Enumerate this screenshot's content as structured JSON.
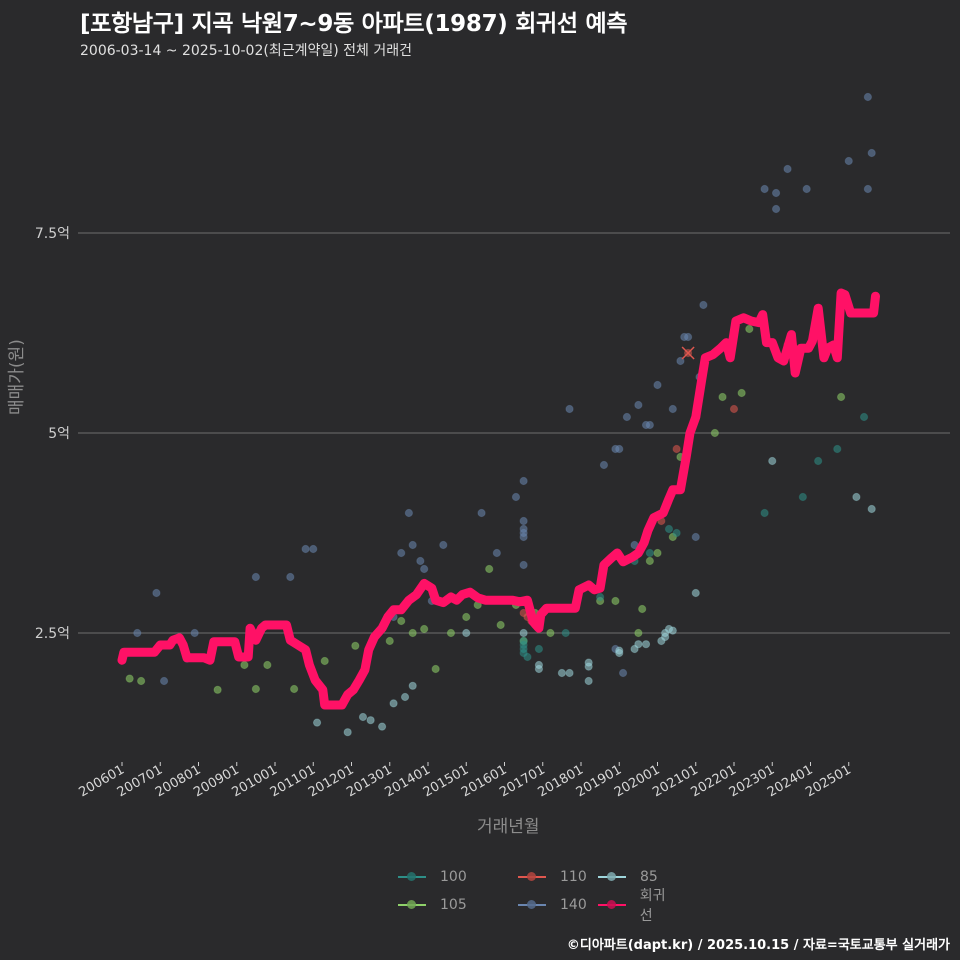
{
  "header": {
    "title": "[포항남구] 지곡 낙원7~9동 아파트(1987) 회귀선 예측",
    "subtitle": "2006-03-14 ~ 2025-10-02(최근계약일) 전체 거래건"
  },
  "footer": {
    "credit": "©디아파트(dapt.kr) / 2025.10.15 / 자료=국토교통부 실거래가"
  },
  "colors": {
    "background": "#2a2a2c",
    "grid": "#6e6e6e",
    "s100": "#2e8f88",
    "s105": "#8fd16a",
    "s110": "#e0574f",
    "s140": "#6a86b0",
    "s85": "#9fd6dc",
    "regression": "#ff1166"
  },
  "chart_data": {
    "type": "scatter",
    "title": "[포항남구] 지곡 낙원7~9동 아파트(1987) 회귀선 예측",
    "subtitle": "2006-03-14 ~ 2025-10-02(최근계약일) 전체 거래건",
    "xlabel": "거래년월",
    "ylabel": "매매가(원)",
    "x_ticks": [
      "200601",
      "200701",
      "200801",
      "200901",
      "201001",
      "201101",
      "201201",
      "201301",
      "201401",
      "201501",
      "201601",
      "201701",
      "201801",
      "201901",
      "202001",
      "202101",
      "202201",
      "202301",
      "202401",
      "202501"
    ],
    "y_ticks": [
      {
        "value": 2.5,
        "label": "2.5억"
      },
      {
        "value": 5,
        "label": "5억"
      },
      {
        "value": 7.5,
        "label": "7.5억"
      }
    ],
    "ylim": [
      0.9,
      9.3
    ],
    "xlim": [
      2005.5,
      2026.2
    ],
    "grid": "horizontal",
    "legend_position": "bottom",
    "legend": [
      {
        "name": "100",
        "color_key": "s100"
      },
      {
        "name": "110",
        "color_key": "s110"
      },
      {
        "name": "85",
        "color_key": "s85"
      },
      {
        "name": "105",
        "color_key": "s105"
      },
      {
        "name": "140",
        "color_key": "s140"
      },
      {
        "name": "회귀선",
        "color_key": "regression"
      }
    ],
    "series": [
      {
        "name": "105",
        "color_key": "s105",
        "points": [
          [
            2006.2,
            1.93
          ],
          [
            2006.5,
            1.9
          ],
          [
            2008.5,
            1.79
          ],
          [
            2009.2,
            2.1
          ],
          [
            2009.5,
            1.8
          ],
          [
            2009.8,
            2.1
          ],
          [
            2010.5,
            1.8
          ],
          [
            2010.9,
            2.1
          ],
          [
            2011.3,
            2.15
          ],
          [
            2012.1,
            2.34
          ],
          [
            2013.0,
            2.4
          ],
          [
            2013.3,
            2.65
          ],
          [
            2013.6,
            2.5
          ],
          [
            2013.9,
            2.55
          ],
          [
            2014.2,
            2.05
          ],
          [
            2014.6,
            2.5
          ],
          [
            2015.0,
            2.7
          ],
          [
            2015.3,
            2.85
          ],
          [
            2015.6,
            3.3
          ],
          [
            2015.9,
            2.6
          ],
          [
            2016.3,
            2.85
          ],
          [
            2016.5,
            2.4
          ],
          [
            2016.8,
            2.75
          ],
          [
            2017.2,
            2.5
          ],
          [
            2018.5,
            2.9
          ],
          [
            2018.9,
            2.9
          ],
          [
            2019.5,
            2.5
          ],
          [
            2019.6,
            2.8
          ],
          [
            2019.8,
            3.4
          ],
          [
            2020.0,
            3.5
          ],
          [
            2020.4,
            3.7
          ],
          [
            2020.6,
            4.7
          ],
          [
            2021.5,
            5.0
          ],
          [
            2021.7,
            5.45
          ],
          [
            2022.2,
            5.5
          ],
          [
            2022.4,
            6.3
          ],
          [
            2024.8,
            5.45
          ]
        ]
      },
      {
        "name": "140",
        "color_key": "s140",
        "points": [
          [
            2006.4,
            2.5
          ],
          [
            2006.9,
            3.0
          ],
          [
            2007.1,
            1.9
          ],
          [
            2007.7,
            2.18
          ],
          [
            2007.9,
            2.5
          ],
          [
            2009.5,
            3.2
          ],
          [
            2010.4,
            3.2
          ],
          [
            2010.8,
            3.55
          ],
          [
            2011.0,
            3.55
          ],
          [
            2013.1,
            2.7
          ],
          [
            2013.3,
            3.5
          ],
          [
            2013.5,
            4.0
          ],
          [
            2013.6,
            3.6
          ],
          [
            2013.8,
            3.4
          ],
          [
            2013.9,
            3.3
          ],
          [
            2014.1,
            2.9
          ],
          [
            2014.4,
            3.6
          ],
          [
            2015.4,
            4.0
          ],
          [
            2015.8,
            3.5
          ],
          [
            2016.3,
            4.2
          ],
          [
            2016.5,
            4.4
          ],
          [
            2016.5,
            3.9
          ],
          [
            2016.5,
            3.8
          ],
          [
            2016.5,
            3.75
          ],
          [
            2016.5,
            3.7
          ],
          [
            2016.5,
            3.35
          ],
          [
            2017.7,
            5.3
          ],
          [
            2018.6,
            4.6
          ],
          [
            2018.9,
            4.8
          ],
          [
            2019.0,
            4.8
          ],
          [
            2019.2,
            5.2
          ],
          [
            2019.5,
            5.35
          ],
          [
            2019.7,
            5.1
          ],
          [
            2019.8,
            5.1
          ],
          [
            2020.0,
            5.6
          ],
          [
            2020.4,
            5.3
          ],
          [
            2020.6,
            5.9
          ],
          [
            2020.7,
            6.2
          ],
          [
            2020.8,
            6.2
          ],
          [
            2021.1,
            5.7
          ],
          [
            2021.2,
            6.6
          ],
          [
            2022.8,
            8.05
          ],
          [
            2023.1,
            7.8
          ],
          [
            2023.1,
            8.0
          ],
          [
            2023.4,
            8.3
          ],
          [
            2023.9,
            8.05
          ],
          [
            2025.0,
            8.4
          ],
          [
            2025.5,
            8.05
          ],
          [
            2025.6,
            8.5
          ],
          [
            2025.5,
            9.2
          ],
          [
            2021.0,
            3.7
          ],
          [
            2019.4,
            3.6
          ],
          [
            2018.9,
            2.3
          ],
          [
            2019.1,
            2.0
          ]
        ]
      },
      {
        "name": "110",
        "color_key": "s110",
        "points": [
          [
            2016.5,
            2.75
          ],
          [
            2016.6,
            2.7
          ],
          [
            2016.7,
            2.65
          ],
          [
            2020.1,
            3.9
          ],
          [
            2020.5,
            4.8
          ],
          [
            2020.8,
            6.0
          ],
          [
            2022.0,
            5.3
          ],
          [
            2023.4,
            6.1
          ]
        ]
      },
      {
        "name": "100",
        "color_key": "s100",
        "points": [
          [
            2016.5,
            2.4
          ],
          [
            2016.5,
            2.35
          ],
          [
            2016.5,
            2.3
          ],
          [
            2016.5,
            2.25
          ],
          [
            2016.6,
            2.2
          ],
          [
            2016.8,
            2.6
          ],
          [
            2016.9,
            2.3
          ],
          [
            2017.6,
            2.5
          ],
          [
            2018.5,
            2.95
          ],
          [
            2019.4,
            3.4
          ],
          [
            2019.8,
            3.5
          ],
          [
            2020.3,
            3.8
          ],
          [
            2020.5,
            3.75
          ],
          [
            2022.8,
            4.0
          ],
          [
            2023.8,
            4.2
          ],
          [
            2024.7,
            4.8
          ],
          [
            2025.4,
            5.2
          ],
          [
            2024.2,
            4.65
          ]
        ]
      },
      {
        "name": "85",
        "color_key": "s85",
        "points": [
          [
            2011.1,
            1.38
          ],
          [
            2011.9,
            1.26
          ],
          [
            2012.3,
            1.45
          ],
          [
            2012.5,
            1.41
          ],
          [
            2012.8,
            1.33
          ],
          [
            2013.1,
            1.62
          ],
          [
            2013.4,
            1.7
          ],
          [
            2013.6,
            1.84
          ],
          [
            2015.0,
            2.5
          ],
          [
            2016.5,
            2.5
          ],
          [
            2016.9,
            2.1
          ],
          [
            2016.9,
            2.05
          ],
          [
            2017.5,
            2.0
          ],
          [
            2017.7,
            2.0
          ],
          [
            2018.2,
            2.13
          ],
          [
            2018.2,
            2.08
          ],
          [
            2018.2,
            1.9
          ],
          [
            2019.0,
            2.28
          ],
          [
            2019.0,
            2.25
          ],
          [
            2019.4,
            2.3
          ],
          [
            2019.5,
            2.36
          ],
          [
            2019.7,
            2.36
          ],
          [
            2020.1,
            2.4
          ],
          [
            2020.2,
            2.5
          ],
          [
            2020.2,
            2.45
          ],
          [
            2020.3,
            2.55
          ],
          [
            2020.4,
            2.53
          ],
          [
            2021.0,
            3.0
          ],
          [
            2023.0,
            4.65
          ],
          [
            2025.6,
            4.05
          ],
          [
            2025.2,
            4.2
          ]
        ]
      }
    ],
    "regression": {
      "name": "회귀선",
      "color_key": "regression",
      "points": [
        [
          2006.0,
          2.16
        ],
        [
          2006.05,
          2.26
        ],
        [
          2006.6,
          2.26
        ],
        [
          2006.85,
          2.26
        ],
        [
          2007.0,
          2.35
        ],
        [
          2007.25,
          2.35
        ],
        [
          2007.33,
          2.41
        ],
        [
          2007.5,
          2.44
        ],
        [
          2007.6,
          2.35
        ],
        [
          2007.7,
          2.19
        ],
        [
          2008.15,
          2.19
        ],
        [
          2008.3,
          2.16
        ],
        [
          2008.4,
          2.39
        ],
        [
          2008.95,
          2.39
        ],
        [
          2009.05,
          2.2
        ],
        [
          2009.3,
          2.2
        ],
        [
          2009.35,
          2.56
        ],
        [
          2009.5,
          2.41
        ],
        [
          2009.65,
          2.56
        ],
        [
          2009.75,
          2.6
        ],
        [
          2010.3,
          2.6
        ],
        [
          2010.4,
          2.41
        ],
        [
          2010.6,
          2.35
        ],
        [
          2010.8,
          2.29
        ],
        [
          2010.9,
          2.1
        ],
        [
          2011.05,
          1.91
        ],
        [
          2011.25,
          1.79
        ],
        [
          2011.3,
          1.6
        ],
        [
          2011.75,
          1.6
        ],
        [
          2011.9,
          1.73
        ],
        [
          2012.05,
          1.79
        ],
        [
          2012.2,
          1.91
        ],
        [
          2012.35,
          2.04
        ],
        [
          2012.45,
          2.29
        ],
        [
          2012.6,
          2.45
        ],
        [
          2012.8,
          2.56
        ],
        [
          2012.95,
          2.7
        ],
        [
          2013.1,
          2.79
        ],
        [
          2013.3,
          2.79
        ],
        [
          2013.5,
          2.91
        ],
        [
          2013.7,
          2.98
        ],
        [
          2013.9,
          3.12
        ],
        [
          2014.1,
          3.06
        ],
        [
          2014.2,
          2.91
        ],
        [
          2014.4,
          2.88
        ],
        [
          2014.6,
          2.95
        ],
        [
          2014.75,
          2.91
        ],
        [
          2014.9,
          2.98
        ],
        [
          2015.1,
          3.01
        ],
        [
          2015.3,
          2.94
        ],
        [
          2015.5,
          2.91
        ],
        [
          2015.75,
          2.91
        ],
        [
          2016.0,
          2.91
        ],
        [
          2016.2,
          2.91
        ],
        [
          2016.4,
          2.89
        ],
        [
          2016.6,
          2.91
        ],
        [
          2016.75,
          2.64
        ],
        [
          2016.9,
          2.56
        ],
        [
          2016.95,
          2.73
        ],
        [
          2017.1,
          2.81
        ],
        [
          2017.35,
          2.81
        ],
        [
          2017.65,
          2.81
        ],
        [
          2017.85,
          2.81
        ],
        [
          2017.95,
          3.04
        ],
        [
          2018.2,
          3.1
        ],
        [
          2018.35,
          3.04
        ],
        [
          2018.5,
          3.06
        ],
        [
          2018.6,
          3.35
        ],
        [
          2018.8,
          3.44
        ],
        [
          2018.95,
          3.5
        ],
        [
          2019.1,
          3.39
        ],
        [
          2019.35,
          3.45
        ],
        [
          2019.5,
          3.5
        ],
        [
          2019.65,
          3.63
        ],
        [
          2019.75,
          3.78
        ],
        [
          2019.9,
          3.94
        ],
        [
          2020.15,
          4.0
        ],
        [
          2020.3,
          4.18
        ],
        [
          2020.4,
          4.29
        ],
        [
          2020.6,
          4.29
        ],
        [
          2020.75,
          4.7
        ],
        [
          2020.85,
          5.0
        ],
        [
          2021.0,
          5.2
        ],
        [
          2021.15,
          5.65
        ],
        [
          2021.25,
          5.94
        ],
        [
          2021.45,
          5.98
        ],
        [
          2021.65,
          6.06
        ],
        [
          2021.8,
          6.13
        ],
        [
          2021.9,
          5.94
        ],
        [
          2022.05,
          6.4
        ],
        [
          2022.25,
          6.44
        ],
        [
          2022.45,
          6.4
        ],
        [
          2022.65,
          6.38
        ],
        [
          2022.75,
          6.48
        ],
        [
          2022.85,
          6.13
        ],
        [
          2023.0,
          6.13
        ],
        [
          2023.15,
          5.94
        ],
        [
          2023.3,
          5.9
        ],
        [
          2023.5,
          6.23
        ],
        [
          2023.6,
          5.75
        ],
        [
          2023.75,
          6.06
        ],
        [
          2023.95,
          6.06
        ],
        [
          2024.05,
          6.15
        ],
        [
          2024.2,
          6.56
        ],
        [
          2024.35,
          5.94
        ],
        [
          2024.45,
          6.06
        ],
        [
          2024.6,
          6.1
        ],
        [
          2024.7,
          5.94
        ],
        [
          2024.8,
          6.75
        ],
        [
          2024.9,
          6.73
        ],
        [
          2025.05,
          6.5
        ],
        [
          2025.4,
          6.5
        ],
        [
          2025.65,
          6.5
        ],
        [
          2025.7,
          6.71
        ]
      ]
    },
    "annotations": [
      {
        "type": "x-marker",
        "x": 2020.8,
        "y": 6.0,
        "color_key": "s110"
      }
    ]
  }
}
